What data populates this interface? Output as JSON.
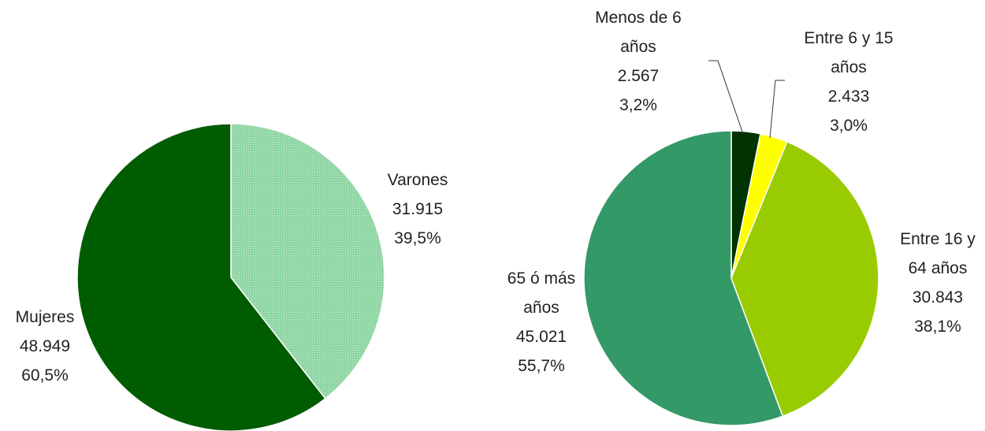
{
  "chart_data": [
    {
      "type": "pie",
      "categories": [
        "Varones",
        "Mujeres"
      ],
      "values": [
        31915,
        48949
      ],
      "value_labels": [
        "31.915",
        "48.949"
      ],
      "percentages": [
        39.5,
        60.5
      ],
      "percent_labels": [
        "39,5%",
        "60,5%"
      ],
      "colors": [
        "#8fd6a4",
        "#005c00"
      ]
    },
    {
      "type": "pie",
      "categories": [
        "Menos de 6 años",
        "Entre 6 y 15 años",
        "Entre 16 y 64 años",
        "65 ó más años"
      ],
      "values": [
        2567,
        2433,
        30843,
        45021
      ],
      "value_labels": [
        "2.567",
        "2.433",
        "30.843",
        "45.021"
      ],
      "percentages": [
        3.2,
        3.0,
        38.1,
        55.7
      ],
      "percent_labels": [
        "3,2%",
        "3,0%",
        "38,1%",
        "55,7%"
      ],
      "colors": [
        "#003300",
        "#ffff00",
        "#99cc00",
        "#339966"
      ]
    }
  ]
}
